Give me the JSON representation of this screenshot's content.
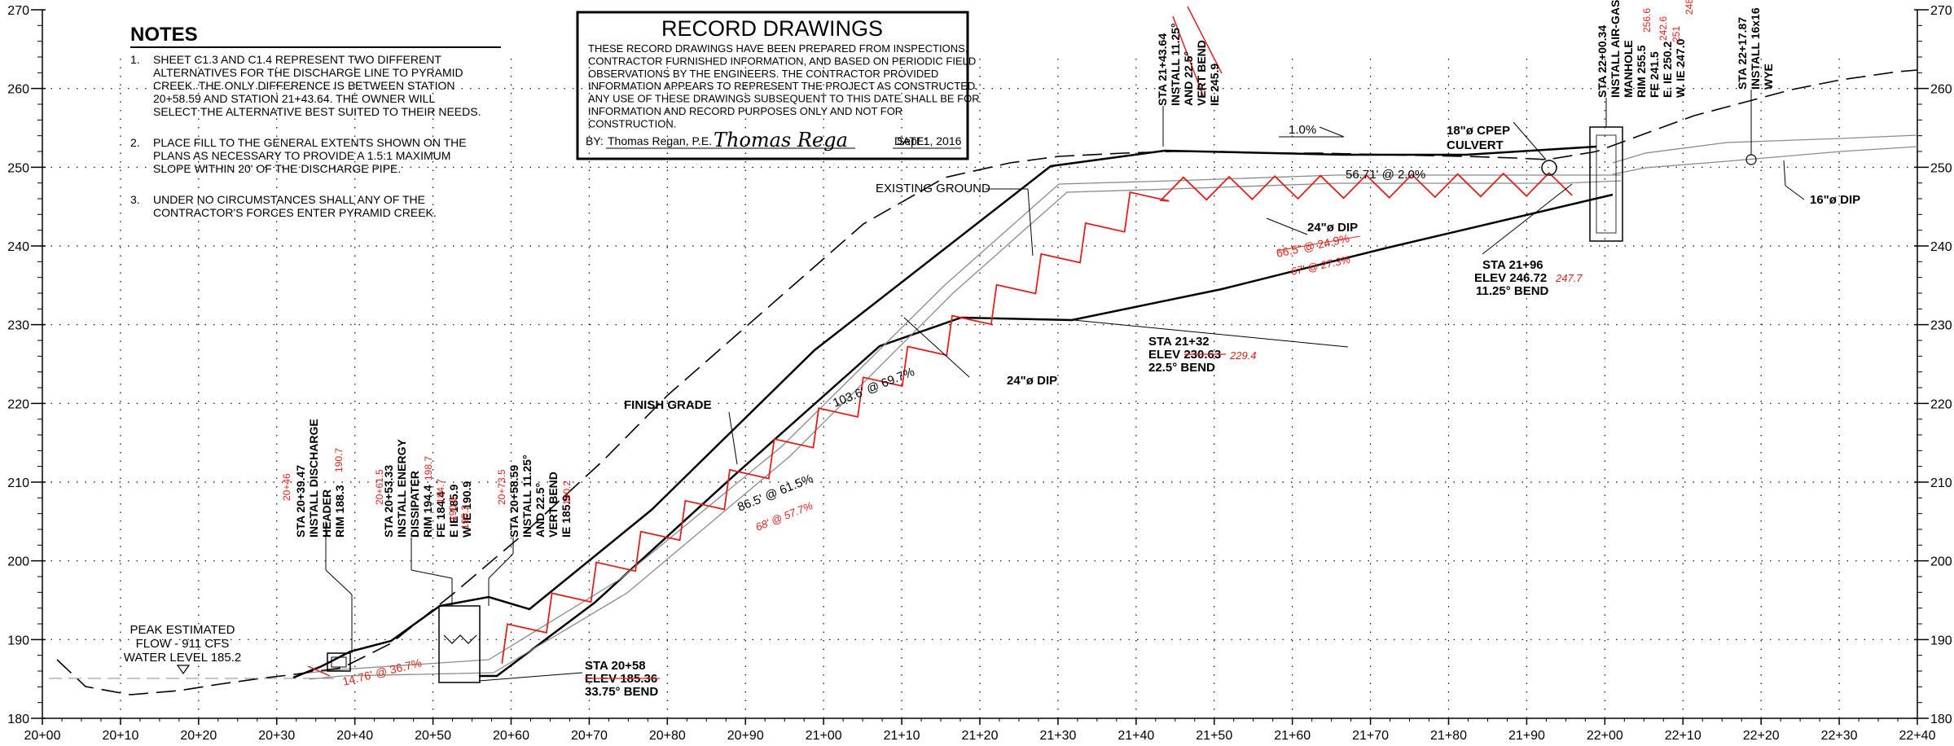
{
  "axes": {
    "x_labels": [
      "20+00",
      "20+10",
      "20+20",
      "20+30",
      "20+40",
      "20+50",
      "20+60",
      "20+70",
      "20+80",
      "20+90",
      "21+00",
      "21+10",
      "21+20",
      "21+30",
      "21+40",
      "21+50",
      "21+60",
      "21+70",
      "21+80",
      "21+90",
      "22+00",
      "22+10",
      "22+20",
      "22+30",
      "22+40"
    ],
    "y_labels": [
      "180",
      "190",
      "200",
      "210",
      "220",
      "230",
      "240",
      "250",
      "260",
      "270"
    ],
    "y_min": 180,
    "y_max": 270
  },
  "notes": {
    "title": "NOTES",
    "items": [
      {
        "num": "1.",
        "lines": [
          "SHEET C1.3 AND C1.4 REPRESENT TWO DIFFERENT",
          "ALTERNATIVES FOR THE DISCHARGE LINE TO PYRAMID",
          "CREEK. THE ONLY DIFFERENCE IS BETWEEN STATION",
          "20+58.59 AND STATION 21+43.64. THE OWNER WILL",
          "SELECT THE ALTERNATIVE BEST SUITED TO THEIR NEEDS."
        ]
      },
      {
        "num": "2.",
        "lines": [
          "PLACE FILL TO THE GENERAL EXTENTS SHOWN ON THE",
          "PLANS AS NECESSARY TO PROVIDE A 1.5:1 MAXIMUM",
          "SLOPE WITHIN 20' OF THE DISCHARGE PIPE."
        ]
      },
      {
        "num": "3.",
        "lines": [
          "UNDER NO CIRCUMSTANCES SHALL ANY OF THE",
          "CONTRACTOR'S FORCES ENTER PYRAMID CREEK."
        ]
      }
    ]
  },
  "record": {
    "title": "RECORD DRAWINGS",
    "lines": [
      "THESE RECORD DRAWINGS HAVE BEEN PREPARED FROM INSPECTIONS,",
      "CONTRACTOR FURNISHED INFORMATION, AND BASED ON PERIODIC FIELD",
      "OBSERVATIONS BY THE ENGINEERS. THE CONTRACTOR PROVIDED",
      "INFORMATION APPEARS TO REPRESENT THE PROJECT AS CONSTRUCTED.",
      "ANY USE OF THESE DRAWINGS SUBSEQUENT TO THIS DATE SHALL BE FOR",
      "INFORMATION AND RECORD PURPOSES ONLY AND NOT FOR",
      "CONSTRUCTION."
    ],
    "by_label": "BY:",
    "by_name": "Thomas Regan, P.E.",
    "signature": "Thomas Rega",
    "date_label": "DATE:",
    "date": "Sept 1, 2016"
  },
  "labels": {
    "peak": [
      "PEAK ESTIMATED",
      "FLOW - 911 CFS",
      "WATER LEVEL 185.2"
    ],
    "existing_ground": "EXISTING GROUND",
    "finish_grade": "FINISH GRADE",
    "culvert": [
      "18\"ø CPEP",
      "CULVERT"
    ],
    "slope_top": "1.0%",
    "dip_upper": "24\"ø DIP",
    "dip_mid": "24\"ø DIP",
    "dip_16": "16\"ø DIP",
    "slope_mid": "56.71' @ 2.0%",
    "slope_main": "103.6' @ 69.7%",
    "slope_low": "86.5' @ 61.5%",
    "slope_low_red": "68' @ 57.7%",
    "slope_up_strike": "66.5' @ 24.9%",
    "slope_up_red": "67' @ 27.3%",
    "slope_bottom_red": "14.76' @ 36.7%"
  },
  "callouts": {
    "sta_20_58": [
      "STA 20+58",
      "ELEV 185.36",
      "33.75° BEND"
    ],
    "sta_21_32": [
      "STA 21+32",
      "ELEV 230.63",
      "22.5° BEND"
    ],
    "sta_21_32_red": "229.4",
    "sta_21_96": [
      "STA 21+96",
      "ELEV 246.72",
      "11.25° BEND"
    ],
    "sta_21_96_red": "247.7"
  },
  "vertical_callouts": [
    {
      "id": "header",
      "lines": [
        "STA 20+39.47",
        "INSTALL DISCHARGE",
        "HEADER",
        "RIM 188.3"
      ],
      "red": [
        "20+46",
        "190.7"
      ]
    },
    {
      "id": "dissipater",
      "lines": [
        "STA 20+53.33",
        "INSTALL ENERGY",
        "DISSIPATER",
        "RIM 194.4",
        "FE 184.4",
        "E IE 185.9",
        "W IE 190.9"
      ],
      "red": [
        "20+61.5",
        "198.7",
        "184.7",
        "190.2",
        "195.2"
      ]
    },
    {
      "id": "vertbend1",
      "lines": [
        "STA 20+58.59",
        "INSTALL 11.25°",
        "AND 22.5°",
        "VERT BEND",
        "IE 185.9"
      ],
      "red": [
        "20+73.5",
        "190.2"
      ]
    },
    {
      "id": "vertbend2",
      "lines": [
        "STA 21+43.64",
        "INSTALL 11.25°",
        "AND 22.5°",
        "VERT BEND",
        "IE 245.9"
      ]
    },
    {
      "id": "manhole",
      "lines": [
        "STA 22+00.34",
        "INSTALL AIR-GAS",
        "MANHOLE",
        "RIM 255.5",
        "FE 241.5",
        "E. IE 250.2",
        "W. IE 247.0"
      ],
      "red": [
        "256.6",
        "242.6",
        "251",
        "248"
      ]
    },
    {
      "id": "wye",
      "lines": [
        "STA 22+17.87",
        "INSTALL 16x16",
        "WYE"
      ]
    }
  ]
}
